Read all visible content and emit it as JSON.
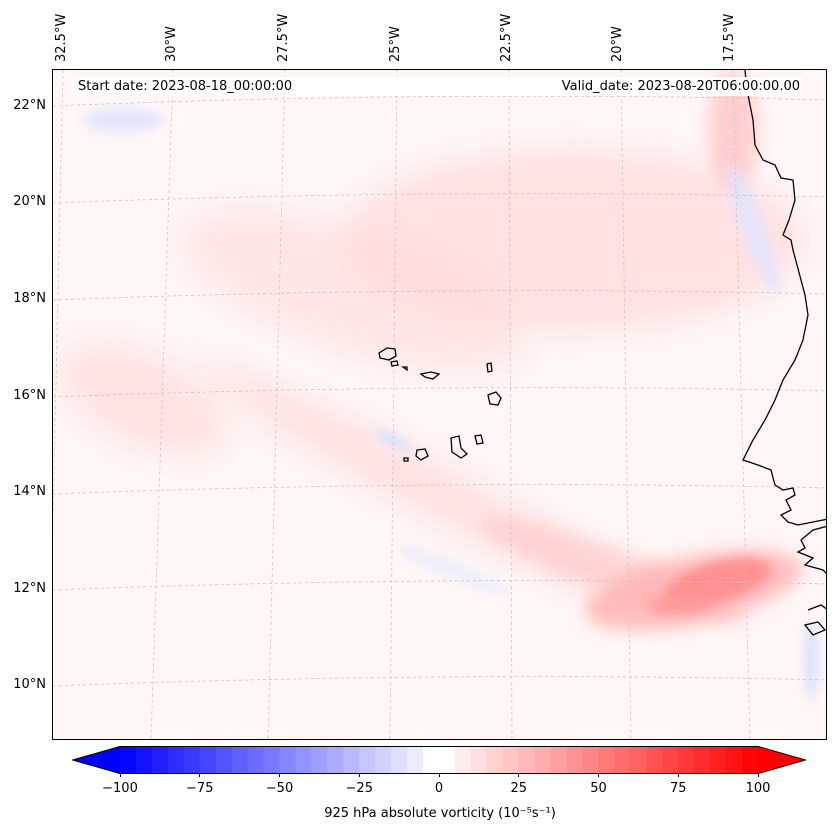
{
  "map": {
    "start_date": "Start date: 2023-08-18_00:00:00",
    "valid_date": "Valid_date: 2023-08-20T06:00:00.00",
    "lon_labels": [
      "32.5°W",
      "30°W",
      "27.5°W",
      "25°W",
      "22.5°W",
      "20°W",
      "17.5°W"
    ],
    "lat_labels": [
      "22°N",
      "20°N",
      "18°N",
      "16°N",
      "14°N",
      "12°N",
      "10°N"
    ],
    "colors": {
      "coast": "#000000",
      "grid": "#c8c8c8",
      "positive": "#ff0000",
      "negative": "#0000ff",
      "zero": "#ffffff"
    }
  },
  "colorbar": {
    "ticks": [
      "−100",
      "−75",
      "−50",
      "−25",
      "0",
      "25",
      "50",
      "75",
      "100"
    ],
    "label": "925 hPa absolute vorticity (10⁻⁵s⁻¹)"
  }
}
